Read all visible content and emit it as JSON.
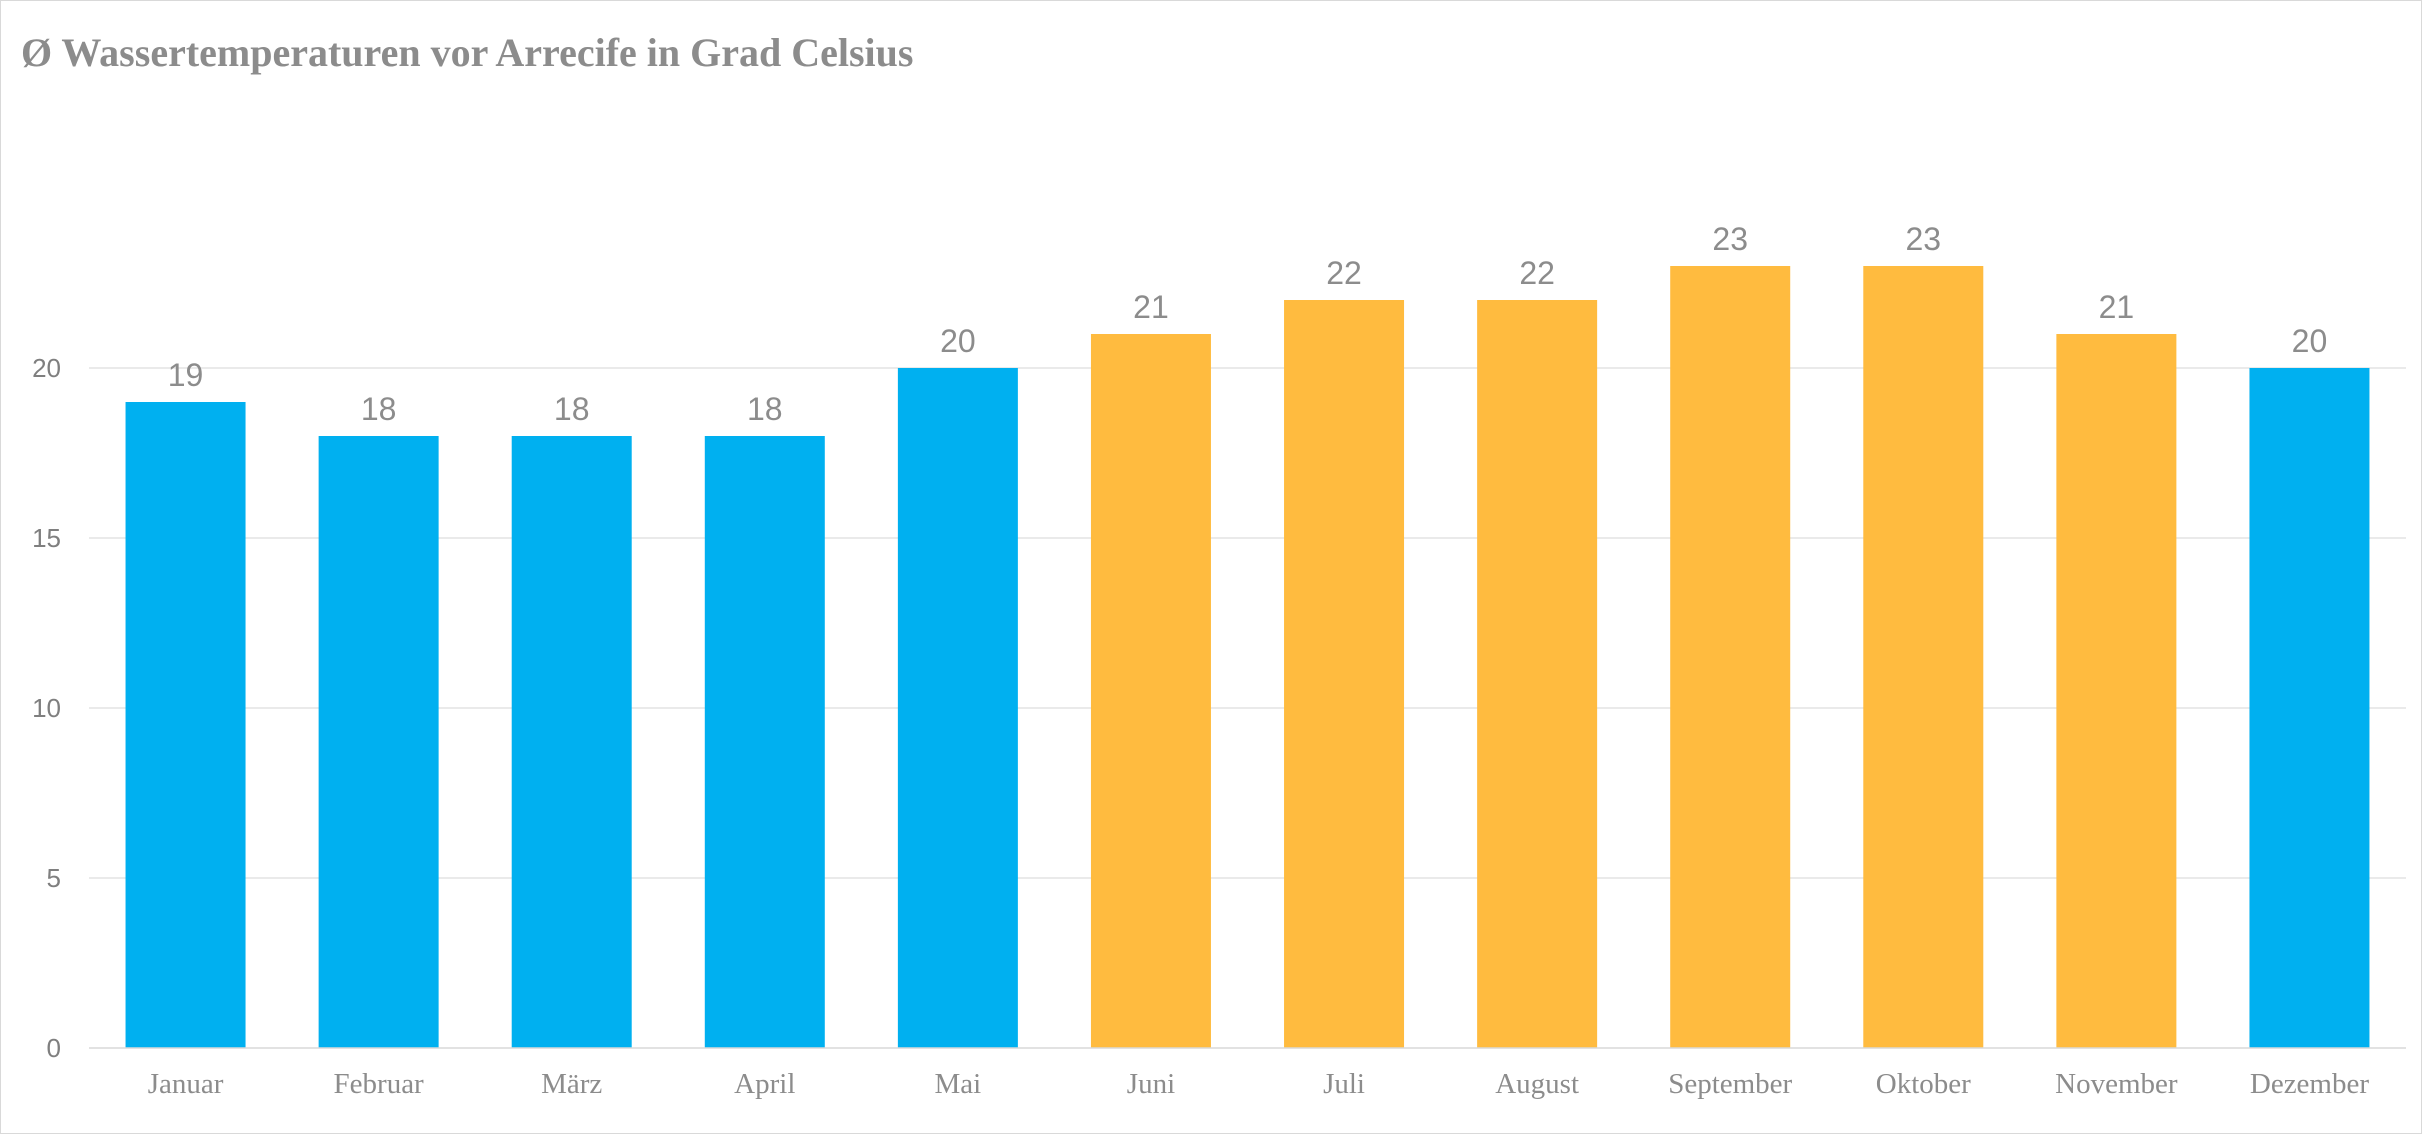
{
  "chart_data": {
    "type": "bar",
    "title": "Ø Wassertemperaturen vor Arrecife in Grad Celsius",
    "categories": [
      "Januar",
      "Februar",
      "März",
      "April",
      "Mai",
      "Juni",
      "Juli",
      "August",
      "September",
      "Oktober",
      "November",
      "Dezember"
    ],
    "values": [
      19,
      18,
      18,
      18,
      20,
      21,
      22,
      22,
      23,
      23,
      21,
      20
    ],
    "bar_colors": [
      "#00b0f0",
      "#00b0f0",
      "#00b0f0",
      "#00b0f0",
      "#00b0f0",
      "#ffbb3f",
      "#ffbb3f",
      "#ffbb3f",
      "#ffbb3f",
      "#ffbb3f",
      "#ffbb3f",
      "#00b0f0"
    ],
    "xlabel": "",
    "ylabel": "",
    "ylim": [
      0,
      25
    ],
    "yticks": [
      0,
      5,
      10,
      15,
      20
    ],
    "grid": true,
    "data_labels": true,
    "legend": "none"
  }
}
